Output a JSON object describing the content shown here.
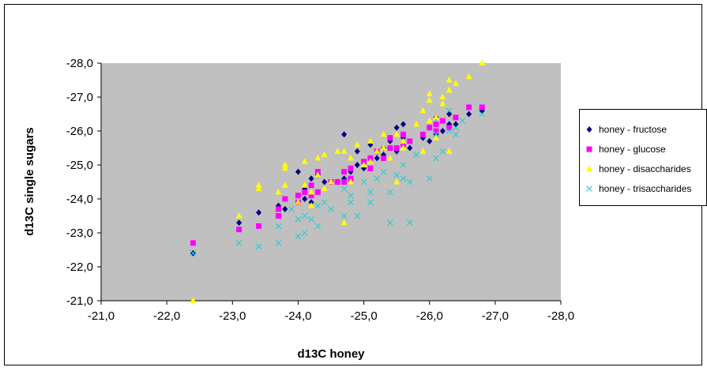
{
  "chart_data": {
    "type": "scatter",
    "title": "",
    "xlabel": "d13C honey",
    "ylabel": "d13C single sugars",
    "xlim": [
      -21,
      -28
    ],
    "ylim": [
      -21,
      -28
    ],
    "x_reversed": true,
    "y_reversed": true,
    "x_ticks": [
      "-21,0",
      "-22,0",
      "-23,0",
      "-24,0",
      "-25,0",
      "-26,0",
      "-27,0",
      "-28,0"
    ],
    "y_ticks": [
      "-21,0",
      "-22,0",
      "-23,0",
      "-24,0",
      "-25,0",
      "-26,0",
      "-27,0",
      "-28,0"
    ],
    "x_tick_values": [
      -21,
      -22,
      -23,
      -24,
      -25,
      -26,
      -27,
      -28
    ],
    "y_tick_values": [
      -21,
      -22,
      -23,
      -24,
      -25,
      -26,
      -27,
      -28
    ],
    "plot_background": "#c0c0c0",
    "grid": false,
    "legend_position": "right",
    "series": [
      {
        "name": "honey - fructose",
        "marker": "diamond",
        "color": "#000080",
        "points": [
          [
            -22.4,
            -22.4
          ],
          [
            -23.1,
            -23.3
          ],
          [
            -23.4,
            -23.6
          ],
          [
            -23.7,
            -23.8
          ],
          [
            -23.8,
            -23.7
          ],
          [
            -24.0,
            -24.8
          ],
          [
            -24.1,
            -24.0
          ],
          [
            -24.1,
            -24.3
          ],
          [
            -24.2,
            -24.6
          ],
          [
            -24.2,
            -23.9
          ],
          [
            -24.3,
            -24.7
          ],
          [
            -24.3,
            -24.2
          ],
          [
            -24.4,
            -24.5
          ],
          [
            -24.5,
            -24.5
          ],
          [
            -24.6,
            -24.5
          ],
          [
            -24.7,
            -25.9
          ],
          [
            -24.7,
            -24.6
          ],
          [
            -24.8,
            -24.8
          ],
          [
            -24.9,
            -25.0
          ],
          [
            -24.9,
            -25.4
          ],
          [
            -25.0,
            -24.9
          ],
          [
            -25.1,
            -25.6
          ],
          [
            -25.2,
            -25.4
          ],
          [
            -25.2,
            -25.2
          ],
          [
            -25.3,
            -25.5
          ],
          [
            -25.3,
            -25.3
          ],
          [
            -25.4,
            -25.7
          ],
          [
            -25.5,
            -26.1
          ],
          [
            -25.5,
            -25.4
          ],
          [
            -25.6,
            -25.8
          ],
          [
            -25.6,
            -26.2
          ],
          [
            -25.7,
            -25.5
          ],
          [
            -25.9,
            -25.8
          ],
          [
            -26.0,
            -25.7
          ],
          [
            -26.0,
            -26.1
          ],
          [
            -26.1,
            -26.4
          ],
          [
            -26.1,
            -25.9
          ],
          [
            -26.2,
            -26.0
          ],
          [
            -26.3,
            -26.2
          ],
          [
            -26.3,
            -26.5
          ],
          [
            -26.4,
            -26.2
          ],
          [
            -26.6,
            -26.5
          ],
          [
            -26.8,
            -26.6
          ]
        ]
      },
      {
        "name": "honey - glucose",
        "marker": "square",
        "color": "#ff00ff",
        "points": [
          [
            -22.4,
            -22.7
          ],
          [
            -23.1,
            -23.1
          ],
          [
            -23.4,
            -23.2
          ],
          [
            -23.7,
            -23.5
          ],
          [
            -23.7,
            -23.7
          ],
          [
            -23.8,
            -24.0
          ],
          [
            -24.0,
            -24.1
          ],
          [
            -24.0,
            -23.9
          ],
          [
            -24.1,
            -24.2
          ],
          [
            -24.2,
            -24.1
          ],
          [
            -24.2,
            -24.4
          ],
          [
            -24.3,
            -24.2
          ],
          [
            -24.3,
            -24.8
          ],
          [
            -24.5,
            -24.5
          ],
          [
            -24.6,
            -24.5
          ],
          [
            -24.7,
            -24.8
          ],
          [
            -24.7,
            -24.5
          ],
          [
            -24.8,
            -24.9
          ],
          [
            -24.8,
            -24.6
          ],
          [
            -25.0,
            -25.1
          ],
          [
            -25.1,
            -24.9
          ],
          [
            -25.1,
            -25.2
          ],
          [
            -25.2,
            -25.4
          ],
          [
            -25.3,
            -25.2
          ],
          [
            -25.4,
            -25.5
          ],
          [
            -25.4,
            -25.8
          ],
          [
            -25.5,
            -25.5
          ],
          [
            -25.6,
            -25.6
          ],
          [
            -25.6,
            -25.9
          ],
          [
            -25.7,
            -25.7
          ],
          [
            -25.9,
            -25.9
          ],
          [
            -26.0,
            -26.1
          ],
          [
            -26.1,
            -26.0
          ],
          [
            -26.1,
            -26.2
          ],
          [
            -26.2,
            -26.3
          ],
          [
            -26.3,
            -26.1
          ],
          [
            -26.4,
            -26.4
          ],
          [
            -26.6,
            -26.7
          ],
          [
            -26.8,
            -26.7
          ]
        ]
      },
      {
        "name": "honey - disaccharides",
        "marker": "triangle",
        "color": "#ffff00",
        "points": [
          [
            -22.4,
            -21.0
          ],
          [
            -23.1,
            -23.5
          ],
          [
            -23.4,
            -24.3
          ],
          [
            -23.4,
            -24.4
          ],
          [
            -23.7,
            -24.2
          ],
          [
            -23.8,
            -24.4
          ],
          [
            -23.8,
            -24.9
          ],
          [
            -23.8,
            -25.0
          ],
          [
            -24.0,
            -23.9
          ],
          [
            -24.1,
            -24.4
          ],
          [
            -24.1,
            -25.1
          ],
          [
            -24.2,
            -23.8
          ],
          [
            -24.2,
            -24.2
          ],
          [
            -24.3,
            -24.7
          ],
          [
            -24.3,
            -25.2
          ],
          [
            -24.4,
            -25.3
          ],
          [
            -24.4,
            -24.3
          ],
          [
            -24.5,
            -24.5
          ],
          [
            -24.6,
            -25.4
          ],
          [
            -24.7,
            -25.4
          ],
          [
            -24.7,
            -23.3
          ],
          [
            -24.8,
            -25.2
          ],
          [
            -24.8,
            -24.5
          ],
          [
            -24.9,
            -25.6
          ],
          [
            -25.0,
            -25.0
          ],
          [
            -25.1,
            -25.7
          ],
          [
            -25.1,
            -25.1
          ],
          [
            -25.2,
            -25.4
          ],
          [
            -25.3,
            -25.5
          ],
          [
            -25.3,
            -25.9
          ],
          [
            -25.4,
            -25.2
          ],
          [
            -25.5,
            -24.5
          ],
          [
            -25.5,
            -25.9
          ],
          [
            -25.6,
            -25.5
          ],
          [
            -25.6,
            -25.7
          ],
          [
            -25.8,
            -26.2
          ],
          [
            -25.9,
            -25.4
          ],
          [
            -25.9,
            -26.6
          ],
          [
            -26.0,
            -26.9
          ],
          [
            -26.0,
            -26.3
          ],
          [
            -26.0,
            -27.1
          ],
          [
            -26.1,
            -26.4
          ],
          [
            -26.1,
            -25.8
          ],
          [
            -26.2,
            -26.8
          ],
          [
            -26.2,
            -27.0
          ],
          [
            -26.3,
            -27.2
          ],
          [
            -26.3,
            -27.5
          ],
          [
            -26.3,
            -25.4
          ],
          [
            -26.4,
            -27.4
          ],
          [
            -26.6,
            -27.6
          ],
          [
            -26.8,
            -28.0
          ]
        ]
      },
      {
        "name": "honey - trisaccharides",
        "marker": "x",
        "color": "#33cccc",
        "points": [
          [
            -22.4,
            -22.4
          ],
          [
            -23.1,
            -22.7
          ],
          [
            -23.4,
            -22.6
          ],
          [
            -23.7,
            -22.7
          ],
          [
            -23.7,
            -23.2
          ],
          [
            -23.9,
            -23.7
          ],
          [
            -24.0,
            -22.9
          ],
          [
            -24.0,
            -23.4
          ],
          [
            -24.1,
            -23.0
          ],
          [
            -24.1,
            -23.5
          ],
          [
            -24.2,
            -23.4
          ],
          [
            -24.3,
            -23.2
          ],
          [
            -24.3,
            -23.8
          ],
          [
            -24.4,
            -23.9
          ],
          [
            -24.5,
            -23.7
          ],
          [
            -24.7,
            -23.5
          ],
          [
            -24.7,
            -24.3
          ],
          [
            -24.8,
            -24.1
          ],
          [
            -24.8,
            -23.9
          ],
          [
            -24.9,
            -23.5
          ],
          [
            -25.0,
            -24.5
          ],
          [
            -25.1,
            -24.2
          ],
          [
            -25.1,
            -23.9
          ],
          [
            -25.2,
            -24.6
          ],
          [
            -25.3,
            -24.8
          ],
          [
            -25.4,
            -24.2
          ],
          [
            -25.4,
            -23.3
          ],
          [
            -25.5,
            -24.7
          ],
          [
            -25.6,
            -25.0
          ],
          [
            -25.6,
            -24.6
          ],
          [
            -25.7,
            -24.5
          ],
          [
            -25.7,
            -23.3
          ],
          [
            -25.8,
            -25.3
          ],
          [
            -26.0,
            -24.6
          ],
          [
            -26.1,
            -25.2
          ],
          [
            -26.1,
            -25.9
          ],
          [
            -26.2,
            -25.4
          ],
          [
            -26.3,
            -26.0
          ],
          [
            -26.3,
            -26.6
          ],
          [
            -26.4,
            -26.1
          ],
          [
            -26.4,
            -25.9
          ],
          [
            -26.5,
            -26.3
          ],
          [
            -26.8,
            -26.5
          ]
        ]
      }
    ]
  }
}
